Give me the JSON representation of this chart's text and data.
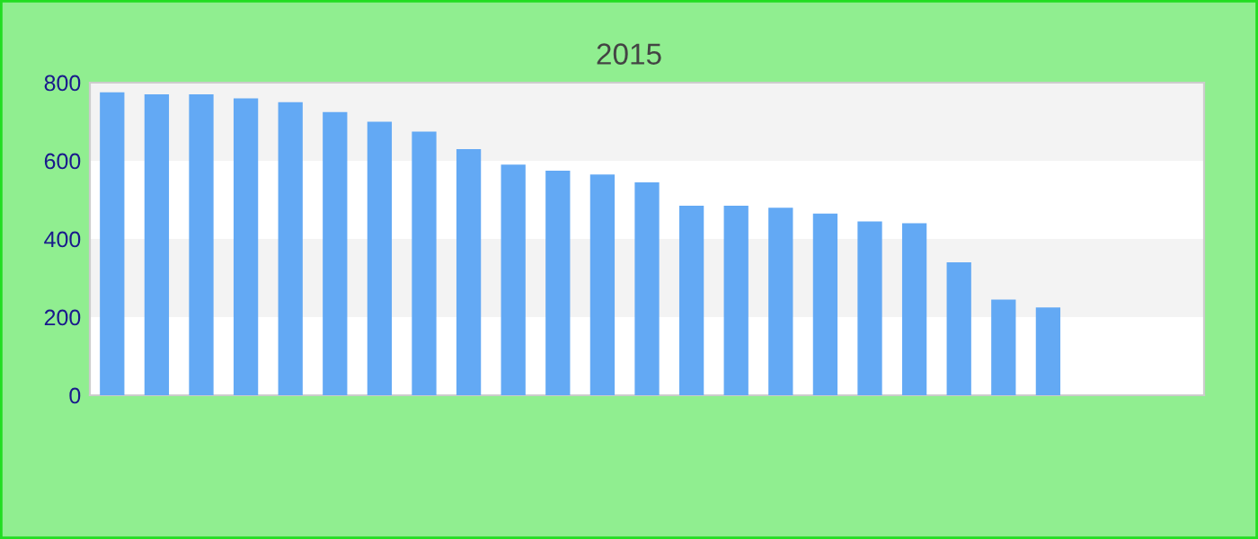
{
  "chart_data": {
    "type": "bar",
    "subtitle": "2015",
    "categories": [
      null,
      null,
      null,
      null,
      null,
      null,
      null,
      null,
      null,
      null,
      null,
      null,
      null,
      null,
      null,
      null,
      null,
      null,
      null,
      null,
      null,
      null,
      null,
      null,
      null
    ],
    "values": [
      775,
      770,
      770,
      760,
      750,
      725,
      700,
      675,
      630,
      590,
      575,
      565,
      545,
      485,
      485,
      480,
      465,
      445,
      440,
      340,
      245,
      225,
      null,
      null,
      null
    ],
    "color": "#63a9f4",
    "ylim": [
      0,
      800
    ],
    "yticks": [
      0,
      200,
      400,
      600,
      800
    ],
    "bands": [
      {
        "axis": "y",
        "from": 200,
        "to": 400,
        "color": "#f3f3f3"
      },
      {
        "axis": "y",
        "from": 600,
        "to": 800,
        "color": "#f3f3f3"
      }
    ],
    "legend": false
  }
}
